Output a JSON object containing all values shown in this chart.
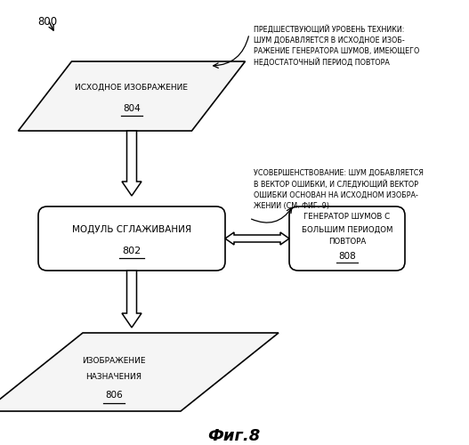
{
  "bg_color": "#ffffff",
  "fig_label": "800",
  "title_text": "Фиг.8",
  "ann1": "ПРЕДШЕСТВУЮЩИЙ УРОВЕНЬ ТЕХНИКИ:\nШУМ ДОБАВЛЯЕТСЯ В ИСХОДНОЕ ИЗОБ-\nРАЖЕНИЕ ГЕНЕРАТОРА ШУМОВ, ИМЕЮЩЕГО\nНЕДОСТАТОЧНЫЙ ПЕРИОД ПОВТОРА",
  "ann2": "УСОВЕРШЕНСТВОВАНИЕ: ШУМ ДОБАВЛЯЕТСЯ\nВ ВЕКТОР ОШИБКИ, И СЛЕДУЮЩИЙ ВЕКТОР\nОШИБКИ ОСНОВАН НА ИСХОДНОМ ИЗОБРА-\nЖЕНИИ (СМ. ФИГ. 9)",
  "label_804": "ИСХОДНОЕ ИЗОБРАЖЕНИЕ",
  "num_804": "804",
  "label_802": "МОДУЛЬ СГЛАЖИВАНИЯ",
  "num_802": "802",
  "label_808_1": "ГЕНЕРАТОР ШУМОВ С",
  "label_808_2": "БОЛЬШИМ ПЕРИОДОМ",
  "label_808_3": "ПОВТОРА",
  "num_808": "808",
  "label_806_1": "ИЗОБРАЖЕНИЕ",
  "label_806_2": "НАЗНАЧЕНИЯ",
  "num_806": "806"
}
